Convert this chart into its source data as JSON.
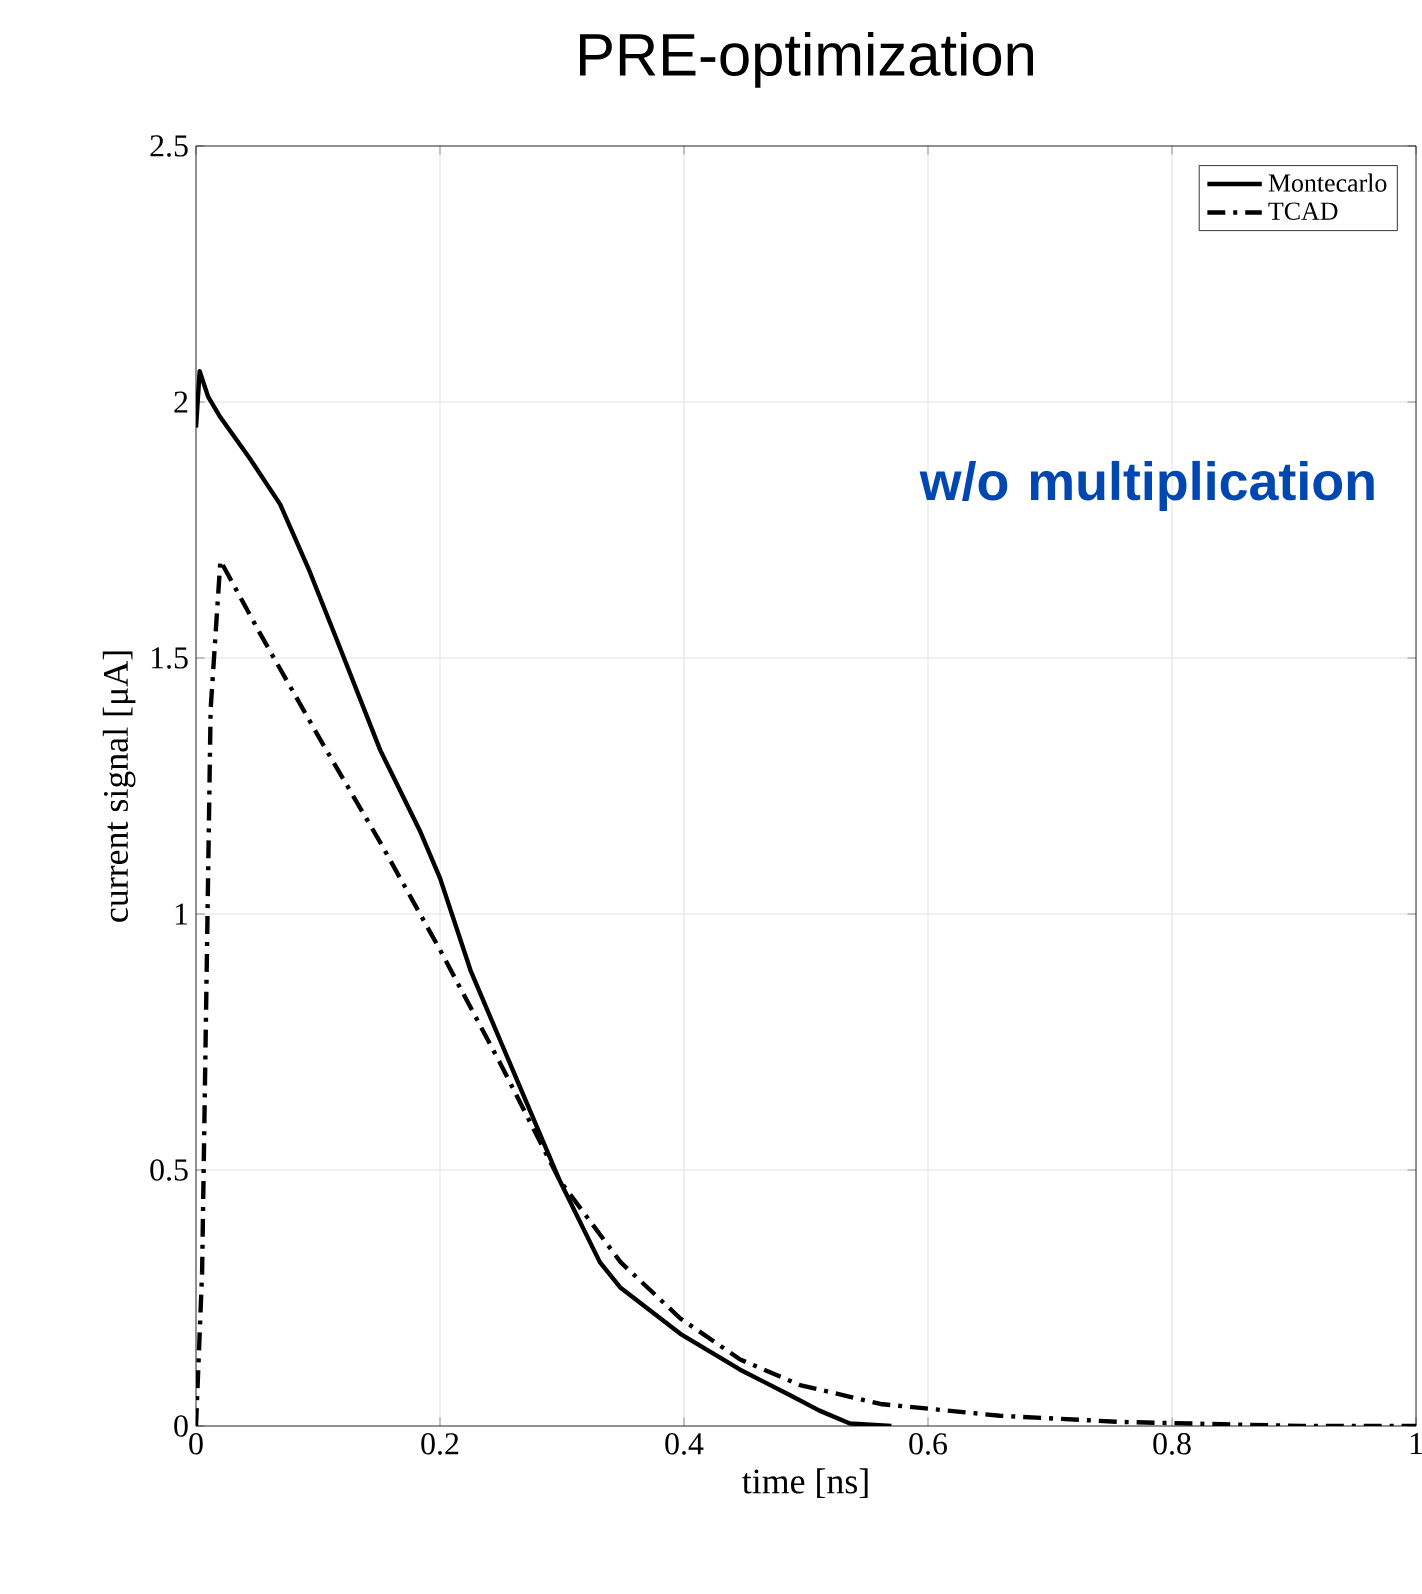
{
  "chart_data": {
    "type": "line",
    "title": "PRE-optimization",
    "xlabel": "time [ns]",
    "ylabel": "current signal [μA]",
    "xlim": [
      0,
      1
    ],
    "ylim": [
      0,
      2.5
    ],
    "xticks": [
      0,
      0.2,
      0.4,
      0.6,
      0.8,
      1
    ],
    "yticks": [
      0,
      0.5,
      1,
      1.5,
      2,
      2.5
    ],
    "grid": true,
    "legend": "top right",
    "annotations": [
      "w/o multiplication"
    ],
    "series": [
      {
        "name": "Montecarlo",
        "color": "#000000",
        "line_style": "solid",
        "x": [
          0,
          0.003,
          0.01,
          0.02,
          0.044,
          0.069,
          0.093,
          0.118,
          0.151,
          0.184,
          0.2,
          0.225,
          0.257,
          0.298,
          0.331,
          0.348,
          0.397,
          0.446,
          0.487,
          0.511,
          0.536,
          0.57
        ],
        "values": [
          1.95,
          2.06,
          2.01,
          1.97,
          1.89,
          1.8,
          1.67,
          1.52,
          1.32,
          1.16,
          1.07,
          0.89,
          0.71,
          0.48,
          0.32,
          0.27,
          0.18,
          0.11,
          0.06,
          0.03,
          0.005,
          0
        ]
      },
      {
        "name": "TCAD",
        "color": "#000000",
        "line_style": "dashed",
        "x": [
          0,
          0.005,
          0.012,
          0.02,
          0.052,
          0.102,
          0.151,
          0.2,
          0.249,
          0.298,
          0.348,
          0.397,
          0.446,
          0.495,
          0.561,
          0.659,
          0.757,
          0.905,
          1
        ],
        "values": [
          0,
          0.3,
          1.4,
          1.69,
          1.55,
          1.34,
          1.14,
          0.93,
          0.71,
          0.48,
          0.32,
          0.21,
          0.13,
          0.08,
          0.043,
          0.02,
          0.008,
          0,
          0
        ]
      }
    ]
  }
}
